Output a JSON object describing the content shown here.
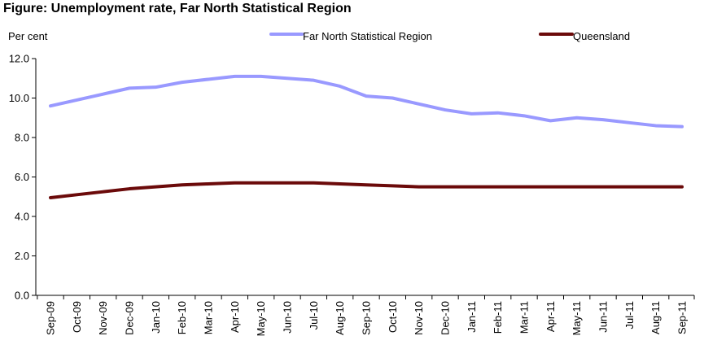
{
  "chart_data": {
    "type": "line",
    "title": "Figure: Unemployment rate, Far North Statistical Region",
    "ylabel": "Per cent",
    "xlabel": "",
    "ylim": [
      0,
      12
    ],
    "yticks": [
      "0.0",
      "2.0",
      "4.0",
      "6.0",
      "8.0",
      "10.0",
      "12.0"
    ],
    "grid": false,
    "legend_position": "top",
    "categories": [
      "Sep-09",
      "Oct-09",
      "Nov-09",
      "Dec-09",
      "Jan-10",
      "Feb-10",
      "Mar-10",
      "Apr-10",
      "May-10",
      "Jun-10",
      "Jul-10",
      "Aug-10",
      "Sep-10",
      "Oct-10",
      "Nov-10",
      "Dec-10",
      "Jan-11",
      "Feb-11",
      "Mar-11",
      "Apr-11",
      "May-11",
      "Jun-11",
      "Jul-11",
      "Aug-11",
      "Sep-11"
    ],
    "series": [
      {
        "name": "Far North Statistical Region",
        "color": "#9999ff",
        "values": [
          9.6,
          9.9,
          10.2,
          10.5,
          10.55,
          10.8,
          10.95,
          11.1,
          11.1,
          11.0,
          10.9,
          10.6,
          10.1,
          10.0,
          9.7,
          9.4,
          9.2,
          9.25,
          9.1,
          8.85,
          9.0,
          8.9,
          8.75,
          8.6,
          8.55
        ]
      },
      {
        "name": "Queensland",
        "color": "#6b0a0a",
        "values": [
          4.95,
          5.1,
          5.25,
          5.4,
          5.5,
          5.6,
          5.65,
          5.7,
          5.7,
          5.7,
          5.7,
          5.65,
          5.6,
          5.55,
          5.5,
          5.5,
          5.5,
          5.5,
          5.5,
          5.5,
          5.5,
          5.5,
          5.5,
          5.5,
          5.5
        ]
      }
    ]
  }
}
